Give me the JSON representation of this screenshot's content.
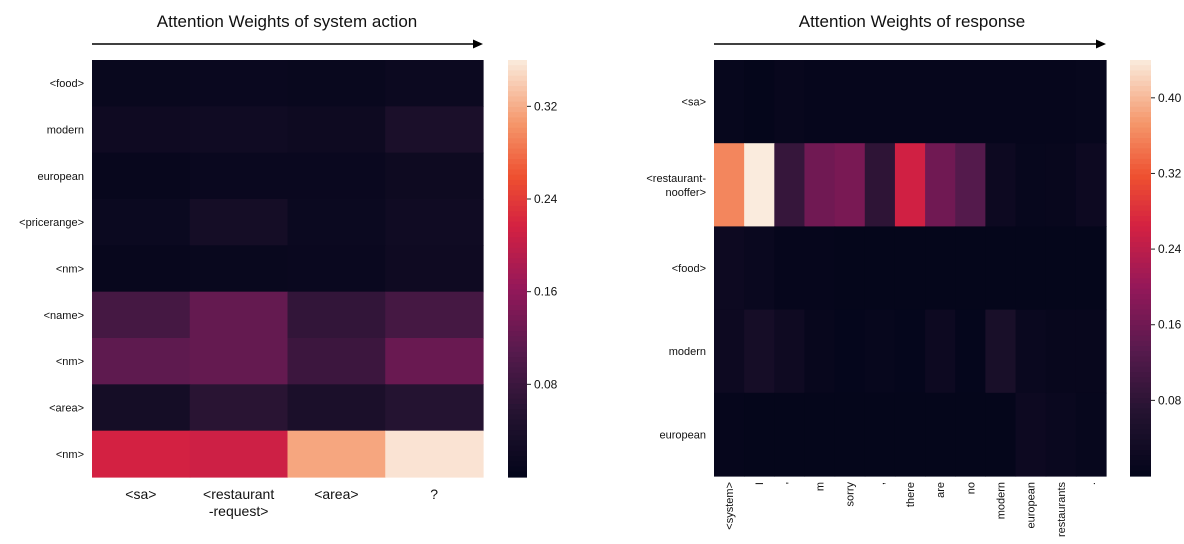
{
  "chart_data": [
    {
      "type": "heatmap",
      "title": "Attention Weights of system action",
      "x_categories": [
        "<sa>",
        "<restaurant\n-request>",
        "<area>",
        "?"
      ],
      "y_categories": [
        "<food>",
        "modern",
        "european",
        "<pricerange>",
        "<nm>",
        "<name>",
        "<nm>",
        "<area>",
        "<nm>"
      ],
      "values": [
        [
          0.01,
          0.012,
          0.01,
          0.015
        ],
        [
          0.02,
          0.022,
          0.018,
          0.04
        ],
        [
          0.008,
          0.012,
          0.012,
          0.018
        ],
        [
          0.014,
          0.03,
          0.014,
          0.022
        ],
        [
          0.008,
          0.01,
          0.012,
          0.02
        ],
        [
          0.09,
          0.12,
          0.07,
          0.09
        ],
        [
          0.115,
          0.12,
          0.08,
          0.125
        ],
        [
          0.03,
          0.06,
          0.04,
          0.055
        ],
        [
          0.215,
          0.21,
          0.315,
          0.355
        ]
      ],
      "colorbar": {
        "min": 0.0,
        "max": 0.36,
        "ticks": [
          0.08,
          0.16,
          0.24,
          0.32
        ],
        "tick_labels": [
          "0.08",
          "0.16",
          "0.24",
          "0.32"
        ]
      },
      "grid": false
    },
    {
      "type": "heatmap",
      "title": "Attention Weights of response",
      "x_categories": [
        "<system>",
        "I",
        "'",
        "m",
        "sorry",
        ",",
        "there",
        "are",
        "no",
        "modern",
        "european",
        "restaurants",
        "."
      ],
      "y_categories": [
        "<sa>",
        "<restaurant-\nnooffer>",
        "<food>",
        "modern",
        "european"
      ],
      "values": [
        [
          0.008,
          0.004,
          0.01,
          0.006,
          0.006,
          0.006,
          0.006,
          0.006,
          0.006,
          0.006,
          0.006,
          0.006,
          0.008
        ],
        [
          0.36,
          0.44,
          0.09,
          0.16,
          0.17,
          0.08,
          0.26,
          0.16,
          0.13,
          0.02,
          0.008,
          0.01,
          0.02
        ],
        [
          0.02,
          0.015,
          0.006,
          0.006,
          0.004,
          0.004,
          0.004,
          0.004,
          0.004,
          0.004,
          0.004,
          0.004,
          0.004
        ],
        [
          0.02,
          0.04,
          0.025,
          0.01,
          0.005,
          0.008,
          0.005,
          0.02,
          0.005,
          0.045,
          0.015,
          0.01,
          0.01
        ],
        [
          0.006,
          0.004,
          0.004,
          0.004,
          0.004,
          0.004,
          0.004,
          0.004,
          0.004,
          0.004,
          0.02,
          0.015,
          0.008
        ]
      ],
      "colorbar": {
        "min": 0.0,
        "max": 0.44,
        "ticks": [
          0.08,
          0.16,
          0.24,
          0.32,
          0.4
        ],
        "tick_labels": [
          "0.08",
          "0.16",
          "0.24",
          "0.32",
          "0.40"
        ]
      },
      "grid": false
    }
  ]
}
